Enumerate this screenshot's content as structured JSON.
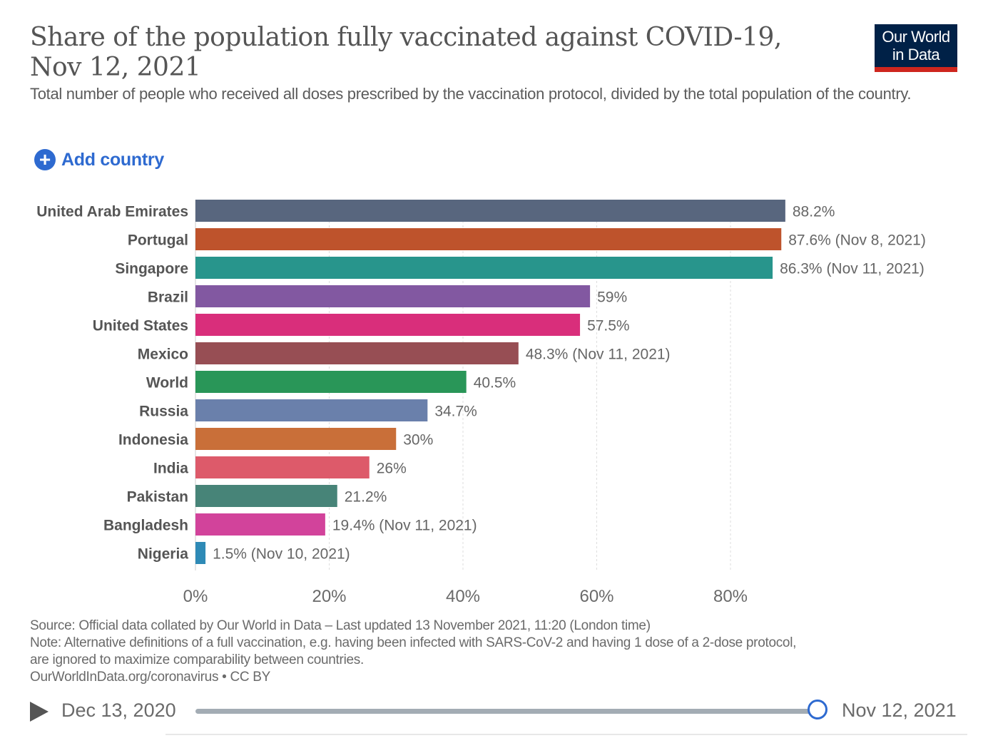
{
  "header": {
    "title": "Share of the population fully vaccinated against COVID-19, Nov 12, 2021",
    "subtitle": "Total number of people who received all doses prescribed by the vaccination protocol, divided by the total population of the country.",
    "logo_line1": "Our World",
    "logo_line2": "in Data"
  },
  "controls": {
    "add_country": "Add country"
  },
  "colors": {
    "accent": "#2e6ad0",
    "logo_bg": "#002147",
    "logo_bar": "#ce261e"
  },
  "chart_data": {
    "type": "bar",
    "orientation": "horizontal",
    "title": "Share of the population fully vaccinated against COVID-19, Nov 12, 2021",
    "xlabel": "",
    "ylabel": "",
    "xlim": [
      0,
      100
    ],
    "x_ticks": [
      "0%",
      "20%",
      "40%",
      "60%",
      "80%"
    ],
    "x_tick_values": [
      0,
      20,
      40,
      60,
      80
    ],
    "grid": "vertical dashed",
    "categories": [
      "United Arab Emirates",
      "Portugal",
      "Singapore",
      "Brazil",
      "United States",
      "Mexico",
      "World",
      "Russia",
      "Indonesia",
      "India",
      "Pakistan",
      "Bangladesh",
      "Nigeria"
    ],
    "values": [
      88.2,
      87.6,
      86.3,
      59,
      57.5,
      48.3,
      40.5,
      34.7,
      30,
      26,
      21.2,
      19.4,
      1.5
    ],
    "labels": [
      "88.2%",
      "87.6% (Nov 8, 2021)",
      "86.3% (Nov 11, 2021)",
      "59%",
      "57.5%",
      "48.3% (Nov 11, 2021)",
      "40.5%",
      "34.7%",
      "30%",
      "26%",
      "21.2%",
      "19.4% (Nov 11, 2021)",
      "1.5% (Nov 10, 2021)"
    ],
    "colors": [
      "#58667e",
      "#be532c",
      "#28958c",
      "#8258a1",
      "#d92e7b",
      "#974e54",
      "#299658",
      "#6a80ab",
      "#c96f39",
      "#dd5a6a",
      "#478478",
      "#d2439b",
      "#2e8ab6"
    ]
  },
  "footer": {
    "source": "Source: Official data collated by Our World in Data – Last updated 13 November 2021, 11:20 (London time)",
    "note_line1": "Note: Alternative definitions of a full vaccination, e.g. having been infected with SARS-CoV-2 and having 1 dose of a 2-dose protocol,",
    "note_line2": "are ignored to maximize comparability between countries.",
    "link": "OurWorldInData.org/coronavirus • CC BY"
  },
  "timeline": {
    "start": "Dec 13, 2020",
    "end": "Nov 12, 2021"
  }
}
